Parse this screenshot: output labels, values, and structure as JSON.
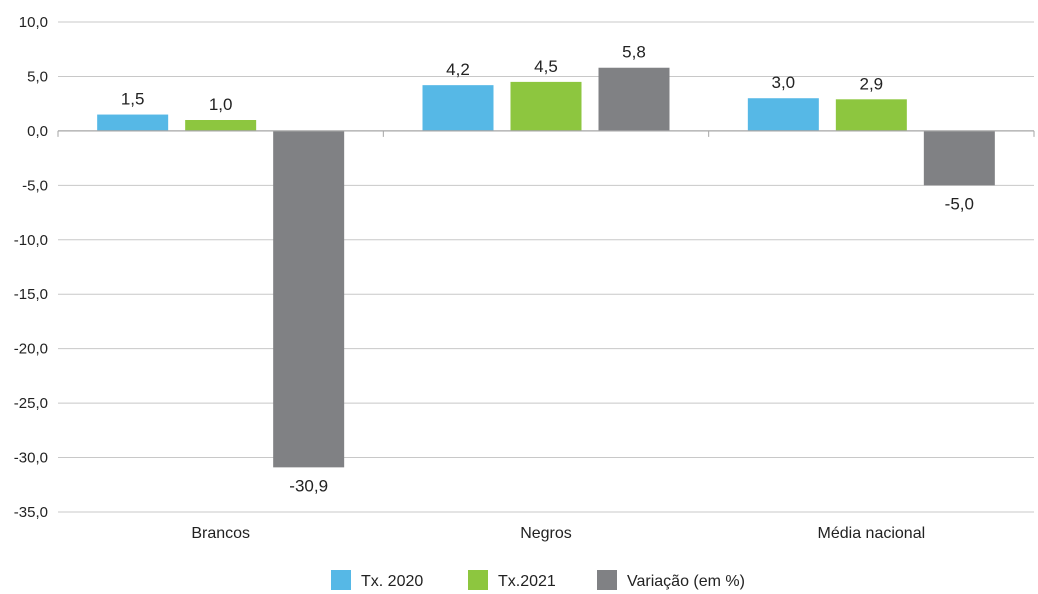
{
  "chart_data": {
    "type": "bar",
    "categories": [
      "Brancos",
      "Negros",
      "Média nacional"
    ],
    "series": [
      {
        "name": "Tx. 2020",
        "color": "#56b8e6",
        "values": [
          1.5,
          4.2,
          3.0
        ],
        "labels": [
          "1,5",
          "4,2",
          "3,0"
        ]
      },
      {
        "name": "Tx.2021",
        "color": "#8dc63f",
        "values": [
          1.0,
          4.5,
          2.9
        ],
        "labels": [
          "1,0",
          "4,5",
          "2,9"
        ]
      },
      {
        "name": "Variação (em %)",
        "color": "#808184",
        "values": [
          -30.9,
          5.8,
          -5.0
        ],
        "labels": [
          "-30,9",
          "5,8",
          "-5,0"
        ]
      }
    ],
    "ylim": [
      -35,
      10
    ],
    "yticks": [
      10,
      5,
      0,
      -5,
      -10,
      -15,
      -20,
      -25,
      -30,
      -35
    ],
    "ytick_labels": [
      "10,0",
      "5,0",
      "0,0",
      "-5,0",
      "-10,0",
      "-15,0",
      "-20,0",
      "-25,0",
      "-30,0",
      "-35,0"
    ],
    "title": "",
    "xlabel": "",
    "ylabel": "",
    "grid": true,
    "legend_position": "bottom-center"
  }
}
